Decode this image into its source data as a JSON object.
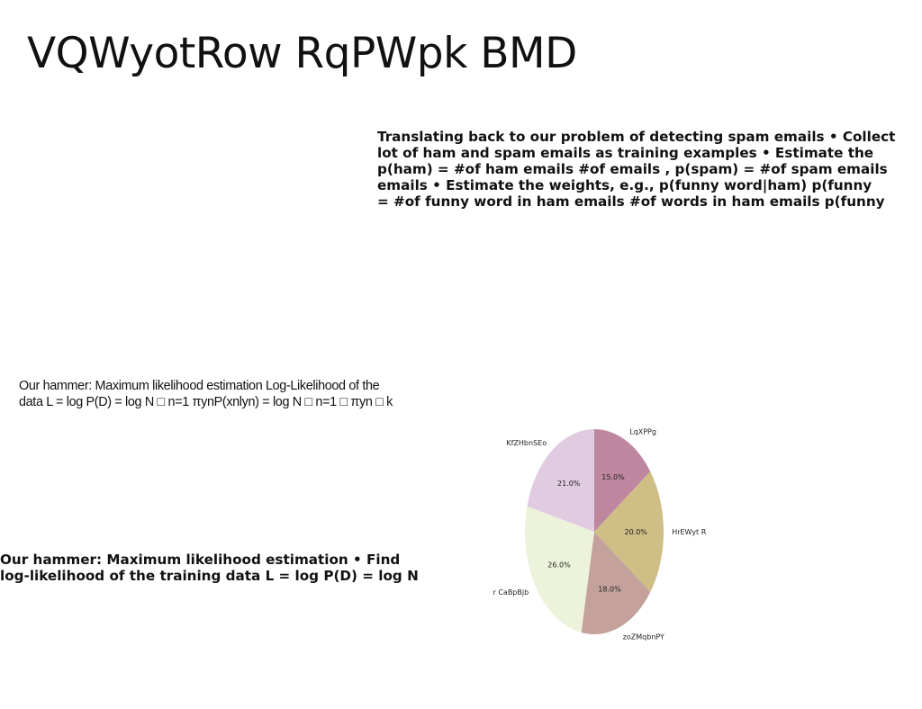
{
  "slide": {
    "title": "VQWyotRow RqPWpk BMD"
  },
  "block_spam": {
    "lines": [
      "Translating back to our problem of detecting spam emails • Collect",
      "lot of ham and spam emails as training examples • Estimate the",
      "p(ham) = #of ham emails #of emails , p(spam) = #of spam emails",
      "emails • Estimate the weights, e.g., p(funny word|ham) p(funny",
      "= #of funny word in ham emails #of words in ham emails p(funny"
    ]
  },
  "block_loglik": {
    "lines": [
      "Our hammer: Maximum likelihood estimation Log-Likelihood of the",
      "data L = log P(D) = log N □ n=1 πynP(xnlyn) = log N □ n=1 □ πyn □ k"
    ]
  },
  "block_mle": {
    "lines": [
      "Our hammer: Maximum likelihood estimation • Find",
      "log-likelihood of the training data L = log P(D) = log N"
    ]
  },
  "chart_data": {
    "type": "pie",
    "start": "12 o'clock",
    "direction": "clockwise",
    "slices": [
      {
        "label": "LqXPPg",
        "value": 15.0,
        "pct_label": "15.0%",
        "color": "#be879f"
      },
      {
        "label": "HrEWyt R",
        "value": 20.0,
        "pct_label": "20.0%",
        "color": "#cfbe86"
      },
      {
        "label": "zoZMqbnPY",
        "value": 18.0,
        "pct_label": "18.0%",
        "color": "#c4a29b"
      },
      {
        "label": "r CaBpBjb",
        "value": 26.0,
        "pct_label": "26.0%",
        "color": "#ecf3da"
      },
      {
        "label": "KfZHbnSEo",
        "value": 21.0,
        "pct_label": "21.0%",
        "color": "#e0cbe0"
      }
    ]
  }
}
